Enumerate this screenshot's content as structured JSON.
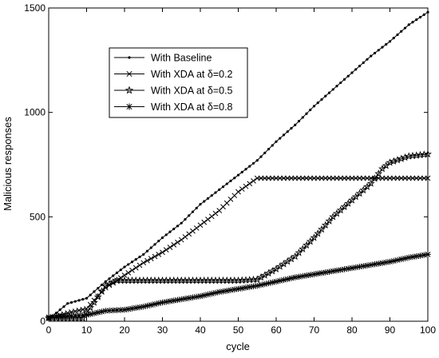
{
  "chart_data": {
    "type": "line",
    "xlabel": "cycle",
    "ylabel": "Malicious responses",
    "xlim": [
      0,
      100
    ],
    "ylim": [
      0,
      1500
    ],
    "xticks": [
      0,
      10,
      20,
      30,
      40,
      50,
      60,
      70,
      80,
      90,
      100
    ],
    "yticks": [
      0,
      500,
      1000,
      1500
    ],
    "grid": false,
    "legend_position": "upper-left-inside",
    "series": [
      {
        "name": "With Baseline",
        "marker": "dot",
        "x": [
          0,
          5,
          10,
          15,
          20,
          25,
          30,
          35,
          40,
          45,
          50,
          55,
          60,
          65,
          70,
          75,
          80,
          85,
          90,
          95,
          100
        ],
        "y": [
          10,
          85,
          110,
          190,
          260,
          320,
          400,
          470,
          560,
          630,
          700,
          770,
          860,
          940,
          1030,
          1110,
          1190,
          1270,
          1340,
          1420,
          1480
        ]
      },
      {
        "name": "With XDA at δ=0.2",
        "marker": "x",
        "x": [
          0,
          5,
          10,
          15,
          20,
          25,
          30,
          35,
          40,
          45,
          50,
          55,
          60,
          65,
          70,
          75,
          80,
          85,
          90,
          95,
          100
        ],
        "y": [
          15,
          40,
          60,
          160,
          220,
          280,
          330,
          390,
          460,
          530,
          620,
          685,
          685,
          685,
          685,
          685,
          685,
          685,
          685,
          685,
          685
        ]
      },
      {
        "name": "With XDA at δ=0.5",
        "marker": "star",
        "x": [
          0,
          5,
          9,
          12,
          15,
          18,
          20,
          30,
          40,
          50,
          55,
          60,
          65,
          70,
          75,
          80,
          85,
          88,
          90,
          95,
          100
        ],
        "y": [
          15,
          15,
          15,
          90,
          170,
          195,
          195,
          195,
          195,
          195,
          200,
          250,
          310,
          400,
          500,
          580,
          660,
          730,
          760,
          790,
          800
        ]
      },
      {
        "name": "With XDA at δ=0.8",
        "marker": "asterisk",
        "x": [
          0,
          5,
          10,
          15,
          20,
          25,
          30,
          35,
          40,
          45,
          50,
          55,
          60,
          65,
          70,
          75,
          80,
          85,
          90,
          95,
          100
        ],
        "y": [
          20,
          25,
          30,
          50,
          55,
          70,
          90,
          105,
          120,
          140,
          155,
          170,
          190,
          210,
          225,
          240,
          255,
          270,
          285,
          305,
          320
        ]
      }
    ]
  }
}
